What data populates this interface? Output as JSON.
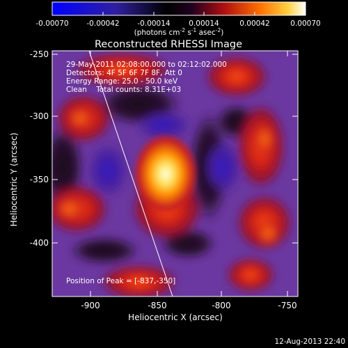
{
  "colorbar": {
    "ticks": [
      "-0.00070",
      "-0.00042",
      "-0.00014",
      "0.00014",
      "0.00042",
      "0.00070"
    ],
    "units_prefix": "(photons cm",
    "units_exp1": "-2",
    "units_mid": " s",
    "units_exp2": "-1",
    "units_mid2": " asec",
    "units_exp3": "-2",
    "units_suffix": ")"
  },
  "title": "Reconstructed RHESSI Image",
  "info": {
    "time": "29-May-2011 02:08:00.000 to 02:12:02.000",
    "detectors": "Detectors: 4F 5F 6F 7F 8F, Att 0",
    "energy": "Energy Range: 25.0 - 50.0 keV",
    "clean": "Clean    Total counts: 8.31E+03"
  },
  "peak": "Position of Peak = [-837,-350]",
  "x_axis": {
    "label": "Heliocentric X (arcsec)",
    "ticks": [
      "-900",
      "-850",
      "-800",
      "-750"
    ]
  },
  "y_axis": {
    "label": "Heliocentric Y (arcsec)",
    "ticks": [
      "-250",
      "-300",
      "-350",
      "-400"
    ]
  },
  "footer": "12-Aug-2013 22:40",
  "palette": {
    "negative": "#0000ff",
    "zero": "#000000",
    "low": "#5a2a8a",
    "mid": "#d02020",
    "high": "#ffa000",
    "peak": "#ffffe0"
  }
}
